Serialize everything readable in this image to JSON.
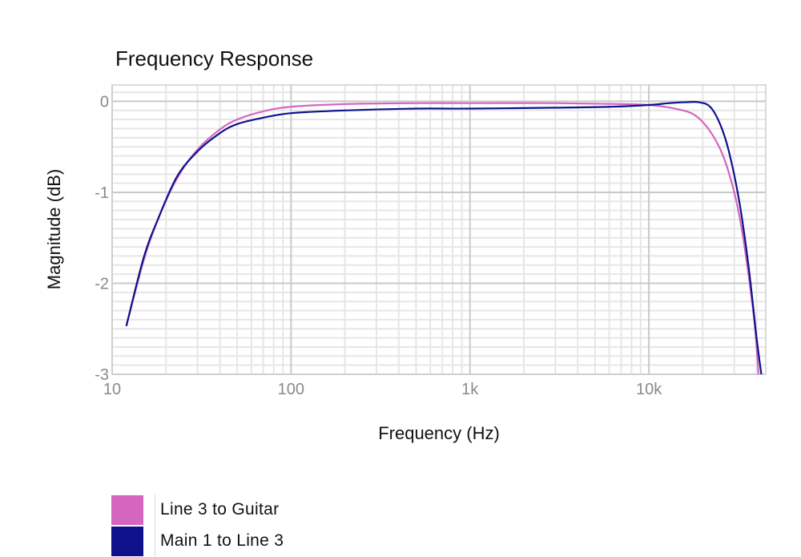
{
  "chart_data": {
    "type": "line",
    "title": "Frequency Response",
    "xlabel": "Frequency (Hz)",
    "ylabel": "Magnitude (dB)",
    "xscale": "log",
    "xlim": [
      10,
      45000
    ],
    "ylim": [
      -3,
      0.18
    ],
    "grid": true,
    "x_ticks": [
      {
        "value": 10,
        "label": "10"
      },
      {
        "value": 100,
        "label": "100"
      },
      {
        "value": 1000,
        "label": "1k"
      },
      {
        "value": 10000,
        "label": "10k"
      }
    ],
    "y_ticks": [
      {
        "value": 0,
        "label": "0"
      },
      {
        "value": -1,
        "label": "-1"
      },
      {
        "value": -2,
        "label": "-2"
      },
      {
        "value": -3,
        "label": "-3"
      }
    ],
    "legend_position": "bottom-left",
    "series": [
      {
        "name": "Line 3 to Guitar",
        "color": "#d466c0",
        "points": [
          [
            12,
            -2.47
          ],
          [
            15,
            -1.75
          ],
          [
            18,
            -1.3
          ],
          [
            23,
            -0.85
          ],
          [
            30,
            -0.53
          ],
          [
            40,
            -0.31
          ],
          [
            50,
            -0.2
          ],
          [
            70,
            -0.11
          ],
          [
            100,
            -0.06
          ],
          [
            200,
            -0.03
          ],
          [
            500,
            -0.02
          ],
          [
            1000,
            -0.02
          ],
          [
            3000,
            -0.02
          ],
          [
            7000,
            -0.03
          ],
          [
            10000,
            -0.04
          ],
          [
            14000,
            -0.08
          ],
          [
            18000,
            -0.15
          ],
          [
            22000,
            -0.33
          ],
          [
            26000,
            -0.6
          ],
          [
            30000,
            -1.0
          ],
          [
            33000,
            -1.4
          ],
          [
            36000,
            -1.9
          ],
          [
            39000,
            -2.45
          ],
          [
            41000,
            -3.0
          ]
        ]
      },
      {
        "name": "Main 1 to Line 3",
        "color": "#0d128c",
        "points": [
          [
            12,
            -2.47
          ],
          [
            15,
            -1.72
          ],
          [
            18,
            -1.3
          ],
          [
            23,
            -0.83
          ],
          [
            30,
            -0.55
          ],
          [
            40,
            -0.35
          ],
          [
            50,
            -0.25
          ],
          [
            70,
            -0.18
          ],
          [
            100,
            -0.13
          ],
          [
            200,
            -0.1
          ],
          [
            500,
            -0.08
          ],
          [
            1000,
            -0.08
          ],
          [
            3000,
            -0.07
          ],
          [
            6000,
            -0.06
          ],
          [
            10000,
            -0.04
          ],
          [
            13000,
            -0.02
          ],
          [
            16000,
            -0.01
          ],
          [
            19000,
            -0.01
          ],
          [
            22000,
            -0.06
          ],
          [
            25000,
            -0.25
          ],
          [
            28000,
            -0.55
          ],
          [
            32000,
            -1.1
          ],
          [
            36000,
            -1.8
          ],
          [
            40000,
            -2.6
          ],
          [
            42500,
            -3.0
          ]
        ]
      }
    ]
  }
}
